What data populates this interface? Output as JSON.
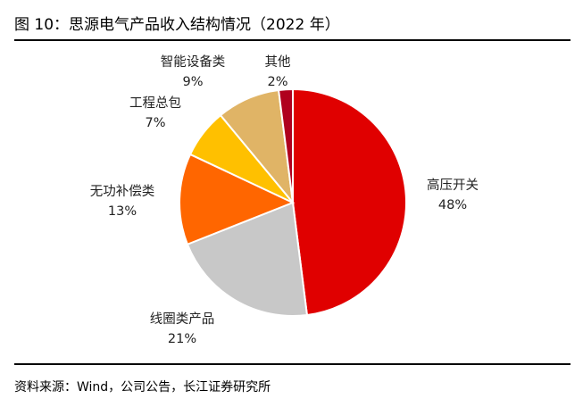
{
  "header": {
    "title": "图 10：思源电气产品收入结构情况（2022 年）"
  },
  "footer": {
    "source": "资料来源：Wind，公司公告，长江证券研究所"
  },
  "chart_data": {
    "type": "pie",
    "title": "图 10：思源电气产品收入结构情况（2022 年）",
    "slices": [
      {
        "label": "高压开关",
        "pct_text": "48%",
        "value": 48,
        "color": "#E00000"
      },
      {
        "label": "线圈类产品",
        "pct_text": "21%",
        "value": 21,
        "color": "#C8C8C8"
      },
      {
        "label": "无功补偿类",
        "pct_text": "13%",
        "value": 13,
        "color": "#FF6600"
      },
      {
        "label": "工程总包",
        "pct_text": "7%",
        "value": 7,
        "color": "#FFC000"
      },
      {
        "label": "智能设备类",
        "pct_text": "9%",
        "value": 9,
        "color": "#E0B466"
      },
      {
        "label": "其他",
        "pct_text": "2%",
        "value": 2,
        "color": "#B0001E"
      }
    ],
    "start": "12 o'clock",
    "direction": "clockwise",
    "legend": "none"
  }
}
